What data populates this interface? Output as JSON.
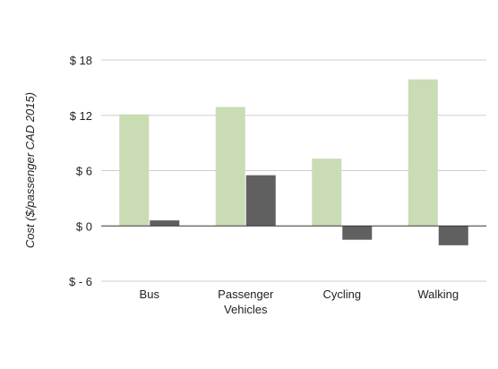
{
  "chart_data": {
    "type": "bar",
    "title": "",
    "xlabel": "",
    "ylabel": "Cost ($/passenger CAD 2015)",
    "ylim": [
      -6,
      18
    ],
    "yticks": [
      18,
      12,
      6,
      0,
      -6
    ],
    "ytick_labels": [
      "$ 18",
      "$ 12",
      "$ 6",
      "$ 0",
      "$ - 6"
    ],
    "grid": true,
    "legend": "none",
    "categories": [
      [
        "Bus"
      ],
      [
        "Passenger",
        "Vehicles"
      ],
      [
        "Cycling"
      ],
      [
        "Walking"
      ]
    ],
    "series": [
      {
        "color": "#c9dcb4",
        "values": [
          12.1,
          12.9,
          7.3,
          15.9
        ]
      },
      {
        "color": "#606060",
        "values": [
          0.6,
          5.5,
          -1.5,
          -2.1
        ]
      }
    ]
  }
}
